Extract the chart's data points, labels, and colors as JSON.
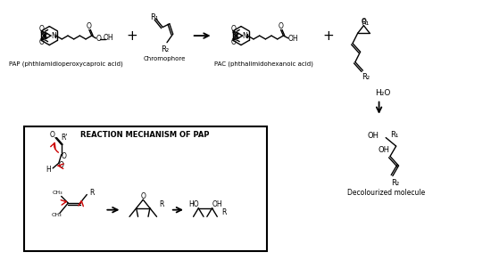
{
  "bg_color": "#ffffff",
  "text_color": "#000000",
  "red_color": "#cc0000",
  "title": "REACTION MECHANISM OF PAP",
  "label_pap": "PAP (phthlamidioperoxycaproic acid)",
  "label_chromophore": "Chromophore",
  "label_pac": "PAC (phthalimidohexanoic acid)",
  "label_decolourized": "Decolourized molecule",
  "figsize": [
    5.5,
    2.92
  ],
  "dpi": 100
}
